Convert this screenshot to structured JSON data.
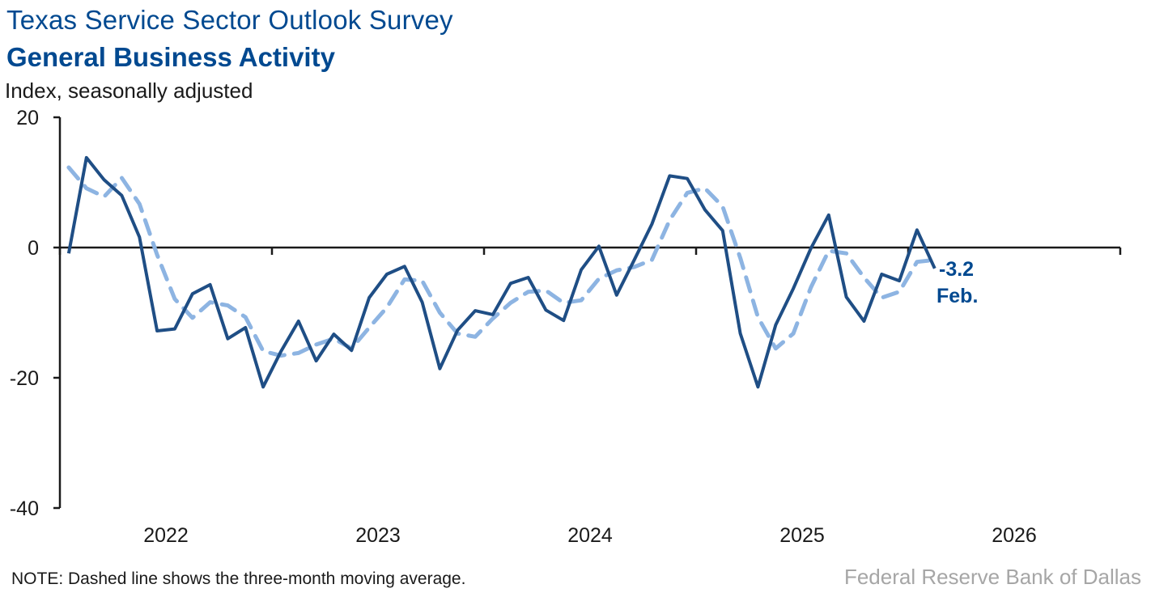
{
  "header": {
    "title": "Texas Service Sector Outlook Survey",
    "subtitle": "General Business Activity",
    "unit_label": "Index, seasonally adjusted"
  },
  "footer": {
    "note": "NOTE: Dashed line shows the three-month moving average.",
    "source": "Federal Reserve Bank of Dallas"
  },
  "chart_data": {
    "type": "line",
    "title": "General Business Activity",
    "ylabel": "Index, seasonally adjusted",
    "xlabel": "",
    "ylim": [
      -40,
      20
    ],
    "yticks": [
      "20",
      "0",
      "-20",
      "-40"
    ],
    "yticks_values": [
      20,
      0,
      -20,
      -40
    ],
    "xlim": [
      "2022-01",
      "2026-12"
    ],
    "xtick_labels": [
      "2022",
      "2023",
      "2024",
      "2025",
      "2026"
    ],
    "grid": false,
    "colors": {
      "index": "#1f4e85",
      "moving_average": "#8db4e2",
      "text": "#004990"
    },
    "x": [
      "2022-01",
      "2022-02",
      "2022-03",
      "2022-04",
      "2022-05",
      "2022-06",
      "2022-07",
      "2022-08",
      "2022-09",
      "2022-10",
      "2022-11",
      "2022-12",
      "2023-01",
      "2023-02",
      "2023-03",
      "2023-04",
      "2023-05",
      "2023-06",
      "2023-07",
      "2023-08",
      "2023-09",
      "2023-10",
      "2023-11",
      "2023-12",
      "2024-01",
      "2024-02",
      "2024-03",
      "2024-04",
      "2024-05",
      "2024-06",
      "2024-07",
      "2024-08",
      "2024-09",
      "2024-10",
      "2024-11",
      "2024-12",
      "2025-01",
      "2025-02",
      "2025-03",
      "2025-04",
      "2025-05",
      "2025-06",
      "2025-07",
      "2025-08",
      "2025-09",
      "2025-10",
      "2025-11",
      "2025-12",
      "2026-01",
      "2026-02"
    ],
    "series": [
      {
        "style": "solid",
        "values": [
          -0.9,
          13.8,
          10.4,
          8.0,
          1.6,
          -12.8,
          -12.5,
          -7.1,
          -5.7,
          -14.0,
          -12.3,
          -21.4,
          -16.0,
          -11.3,
          -17.4,
          -13.3,
          -15.8,
          -7.7,
          -4.1,
          -2.9,
          -8.4,
          -18.6,
          -12.7,
          -9.7,
          -10.3,
          -5.5,
          -4.6,
          -9.6,
          -11.2,
          -3.4,
          0.2,
          -7.3,
          -1.9,
          3.6,
          11.0,
          10.6,
          5.8,
          2.6,
          -13.2,
          -21.4,
          -11.9,
          -6.3,
          -0.1,
          5.0,
          -7.6,
          -11.3,
          -4.1,
          -5.1,
          2.7,
          -3.2
        ]
      },
      {
        "style": "dashed",
        "values": [
          12.3,
          9.1,
          7.8,
          10.7,
          6.7,
          -1.1,
          -7.9,
          -10.8,
          -8.4,
          -8.9,
          -10.7,
          -15.9,
          -16.6,
          -16.2,
          -14.9,
          -14.0,
          -15.5,
          -12.3,
          -9.2,
          -4.9,
          -5.1,
          -10.0,
          -13.2,
          -13.7,
          -10.9,
          -8.5,
          -6.8,
          -6.6,
          -8.5,
          -8.1,
          -4.8,
          -3.5,
          -3.0,
          -1.9,
          4.2,
          8.4,
          9.1,
          6.3,
          -1.6,
          -10.7,
          -15.5,
          -13.2,
          -6.1,
          -0.5,
          -0.9,
          -4.6,
          -7.7,
          -6.8,
          -2.2,
          -1.9
        ]
      }
    ],
    "annotations": {
      "last_value": "-3.2",
      "last_month": "Feb."
    }
  }
}
